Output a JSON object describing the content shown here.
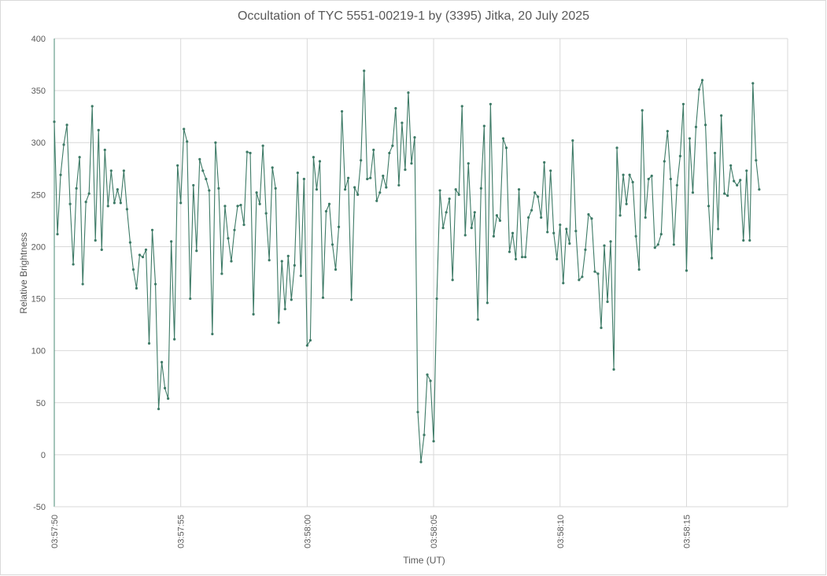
{
  "chart_data": {
    "type": "line",
    "title": "Occultation of TYC 5551-00219-1 by (3395) Jitka, 20 July 2025",
    "xlabel": "Time (UT)",
    "ylabel": "Relative Brightness",
    "ylim": [
      -50,
      400
    ],
    "yticks": [
      "400",
      "350",
      "300",
      "250",
      "200",
      "150",
      "100",
      "50",
      "0",
      "-50"
    ],
    "xlim": [
      "03:57:50",
      "03:58:19"
    ],
    "xticks": [
      "03:57:50",
      "03:57:55",
      "03:58:00",
      "03:58:05",
      "03:58:10",
      "03:58:15"
    ],
    "grid": true,
    "legend": "none",
    "colors": {
      "line": "#3d7a66",
      "grid": "#d9d9d9",
      "axis": "#4a8b74",
      "text": "#595959"
    },
    "sample_interval_s": 0.125,
    "series": [
      {
        "values": [
          320,
          212,
          269,
          298,
          317,
          241,
          183,
          256,
          286,
          164,
          243,
          251,
          335,
          206,
          312,
          197,
          293,
          239,
          273,
          242,
          255,
          242,
          273,
          236,
          204,
          178,
          160,
          192,
          190,
          197,
          107,
          216,
          164,
          44,
          89,
          64,
          54,
          205,
          111,
          278,
          242,
          313,
          301,
          150,
          259,
          196,
          284,
          273,
          265,
          254,
          116,
          300,
          256,
          174,
          239,
          208,
          186,
          216,
          239,
          240,
          221,
          291,
          290,
          135,
          252,
          241,
          297,
          232,
          187,
          276,
          256,
          127,
          186,
          140,
          191,
          149,
          182,
          271,
          172,
          265,
          105,
          110,
          286,
          255,
          282,
          151,
          234,
          241,
          202,
          178,
          219,
          330,
          255,
          266,
          149,
          257,
          250,
          283,
          369,
          265,
          266,
          293,
          244,
          252,
          268,
          257,
          290,
          297,
          333,
          259,
          319,
          274,
          348,
          280,
          305,
          41,
          -7,
          19,
          77,
          71,
          13,
          150,
          254,
          218,
          233,
          246,
          168,
          255,
          250,
          335,
          211,
          280,
          218,
          233,
          130,
          256,
          316,
          146,
          337,
          210,
          230,
          225,
          304,
          295,
          195,
          213,
          188,
          255,
          190,
          190,
          228,
          235,
          252,
          248,
          228,
          281,
          214,
          273,
          213,
          188,
          221,
          165,
          217,
          203,
          302,
          215,
          168,
          171,
          197,
          231,
          227,
          176,
          174,
          122,
          201,
          147,
          205,
          82,
          295,
          230,
          269,
          241,
          269,
          262,
          210,
          178,
          331,
          228,
          265,
          268,
          199,
          202,
          212,
          282,
          311,
          265,
          202,
          259,
          287,
          337,
          177,
          304,
          252,
          315,
          351,
          360,
          317,
          239,
          189,
          290,
          217,
          326,
          251,
          249,
          278,
          263,
          259,
          264,
          206,
          273,
          206,
          357,
          283,
          255
        ]
      }
    ]
  }
}
